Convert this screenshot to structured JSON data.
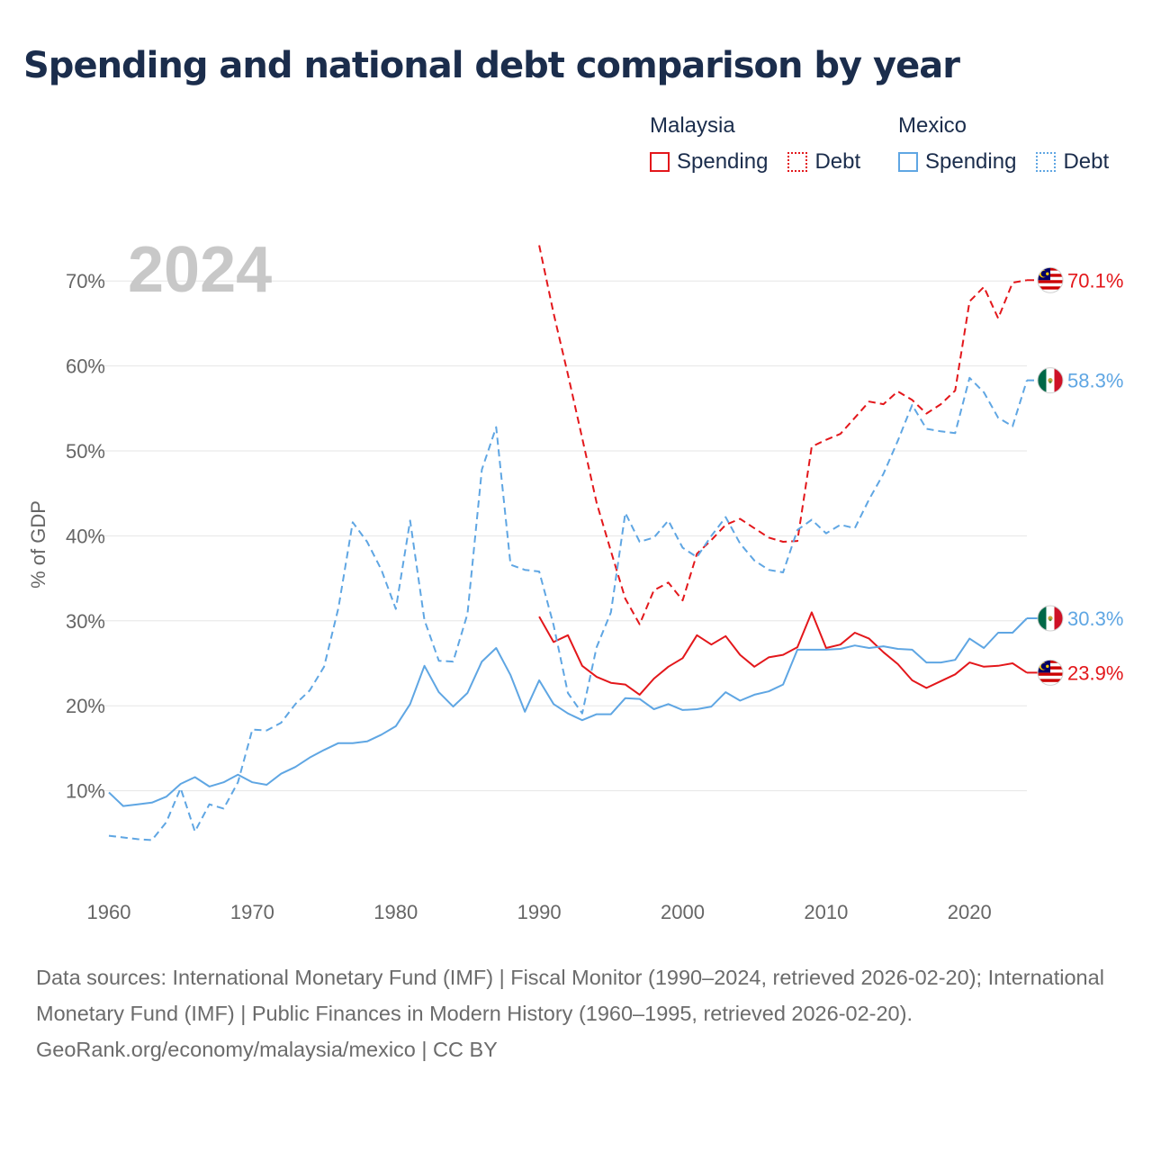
{
  "title": "Spending and national debt comparison by year",
  "legend": {
    "groups": [
      {
        "country": "Malaysia",
        "items": [
          {
            "label": "Spending",
            "style": "solid",
            "color": "#e3171b"
          },
          {
            "label": "Debt",
            "style": "dotted",
            "color": "#e3171b"
          }
        ]
      },
      {
        "country": "Mexico",
        "items": [
          {
            "label": "Spending",
            "style": "solid",
            "color": "#5fa6e3"
          },
          {
            "label": "Debt",
            "style": "dotted",
            "color": "#5fa6e3"
          }
        ]
      }
    ]
  },
  "year_label": "2024",
  "footer": {
    "sources": "Data sources: International Monetary Fund (IMF) | Fiscal Monitor (1990–2024, retrieved 2026-02-20); International Monetary Fund (IMF) | Public Finances in Modern History (1960–1995, retrieved 2026-02-20).",
    "credit": "GeoRank.org/economy/malaysia/mexico | CC BY"
  },
  "chart_data": {
    "type": "line",
    "title": "Spending and national debt comparison by year",
    "xlabel": "",
    "ylabel": "% of GDP",
    "xlim": [
      1960,
      2024
    ],
    "ylim": [
      0,
      75
    ],
    "x_ticks": [
      1960,
      1970,
      1980,
      1990,
      2000,
      2010,
      2020
    ],
    "y_ticks": [
      10,
      20,
      30,
      40,
      50,
      60,
      70
    ],
    "y_tick_labels": [
      "10%",
      "20%",
      "30%",
      "40%",
      "50%",
      "60%",
      "70%"
    ],
    "grid": "horizontal",
    "colors": {
      "malaysia": "#e3171b",
      "mexico": "#5fa6e3"
    },
    "series": [
      {
        "name": "Malaysia Spending",
        "country": "Malaysia",
        "flag": "malaysia-flag-icon",
        "style": "solid",
        "color": "#e3171b",
        "start_year": 1990,
        "values": [
          30.5,
          27.5,
          28.3,
          24.7,
          23.4,
          22.7,
          22.5,
          21.3,
          23.2,
          24.6,
          25.6,
          28.3,
          27.2,
          28.2,
          26.0,
          24.6,
          25.7,
          26.0,
          26.9,
          31.0,
          26.8,
          27.2,
          28.6,
          27.9,
          26.3,
          24.9,
          23.0,
          22.1,
          22.9,
          23.7,
          25.1,
          24.6,
          24.7,
          25.0,
          23.9
        ],
        "end_label": "23.9%"
      },
      {
        "name": "Malaysia Debt",
        "country": "Malaysia",
        "flag": "malaysia-flag-icon",
        "style": "dashed",
        "color": "#e3171b",
        "start_year": 1990,
        "values": [
          74.2,
          66.2,
          59.0,
          51.5,
          43.9,
          38.2,
          32.6,
          29.6,
          33.6,
          34.5,
          32.4,
          37.9,
          39.5,
          41.3,
          42.0,
          40.9,
          39.8,
          39.3,
          39.4,
          50.5,
          51.3,
          52.0,
          53.9,
          55.8,
          55.5,
          57.0,
          56.0,
          54.4,
          55.5,
          57.1,
          67.6,
          69.3,
          65.6,
          69.8,
          70.1
        ],
        "end_label": "70.1%"
      },
      {
        "name": "Mexico Spending",
        "country": "Mexico",
        "flag": "mexico-flag-icon",
        "style": "solid",
        "color": "#5fa6e3",
        "start_year": 1960,
        "values": [
          9.8,
          8.2,
          8.4,
          8.6,
          9.3,
          10.8,
          11.6,
          10.5,
          11.0,
          11.9,
          11.0,
          10.7,
          12.0,
          12.8,
          13.9,
          14.8,
          15.6,
          15.6,
          15.8,
          16.6,
          17.6,
          20.2,
          24.7,
          21.6,
          19.9,
          21.5,
          25.2,
          26.8,
          23.6,
          19.3,
          23.0,
          20.2,
          19.1,
          18.3,
          19.0,
          19.0,
          20.9,
          20.8,
          19.6,
          20.2,
          19.5,
          19.6,
          19.9,
          21.6,
          20.6,
          21.3,
          21.7,
          22.5,
          26.6,
          26.6,
          26.6,
          26.7,
          27.1,
          26.8,
          27.0,
          26.7,
          26.6,
          25.1,
          25.1,
          25.4,
          27.9,
          26.8,
          28.6,
          28.6,
          30.3
        ],
        "end_label": "30.3%"
      },
      {
        "name": "Mexico Debt",
        "country": "Mexico",
        "flag": "mexico-flag-icon",
        "style": "dashed",
        "color": "#5fa6e3",
        "start_year": 1960,
        "values": [
          4.7,
          4.5,
          4.3,
          4.2,
          6.3,
          10.3,
          5.2,
          8.4,
          7.9,
          11.0,
          17.2,
          17.1,
          18.0,
          20.2,
          21.8,
          24.6,
          31.5,
          41.6,
          39.3,
          36.0,
          31.4,
          41.8,
          30.1,
          25.3,
          25.2,
          30.8,
          47.8,
          52.8,
          36.6,
          36.0,
          35.8,
          29.5,
          21.5,
          19.1,
          26.9,
          31.0,
          42.7,
          39.3,
          39.8,
          41.8,
          38.6,
          37.5,
          40.0,
          42.2,
          39.1,
          37.1,
          36.0,
          35.7,
          40.7,
          41.9,
          40.3,
          41.3,
          40.9,
          44.3,
          47.3,
          51.2,
          55.4,
          52.6,
          52.3,
          52.1,
          58.6,
          56.9,
          53.9,
          52.9,
          58.3
        ],
        "end_label": "58.3%"
      }
    ]
  }
}
